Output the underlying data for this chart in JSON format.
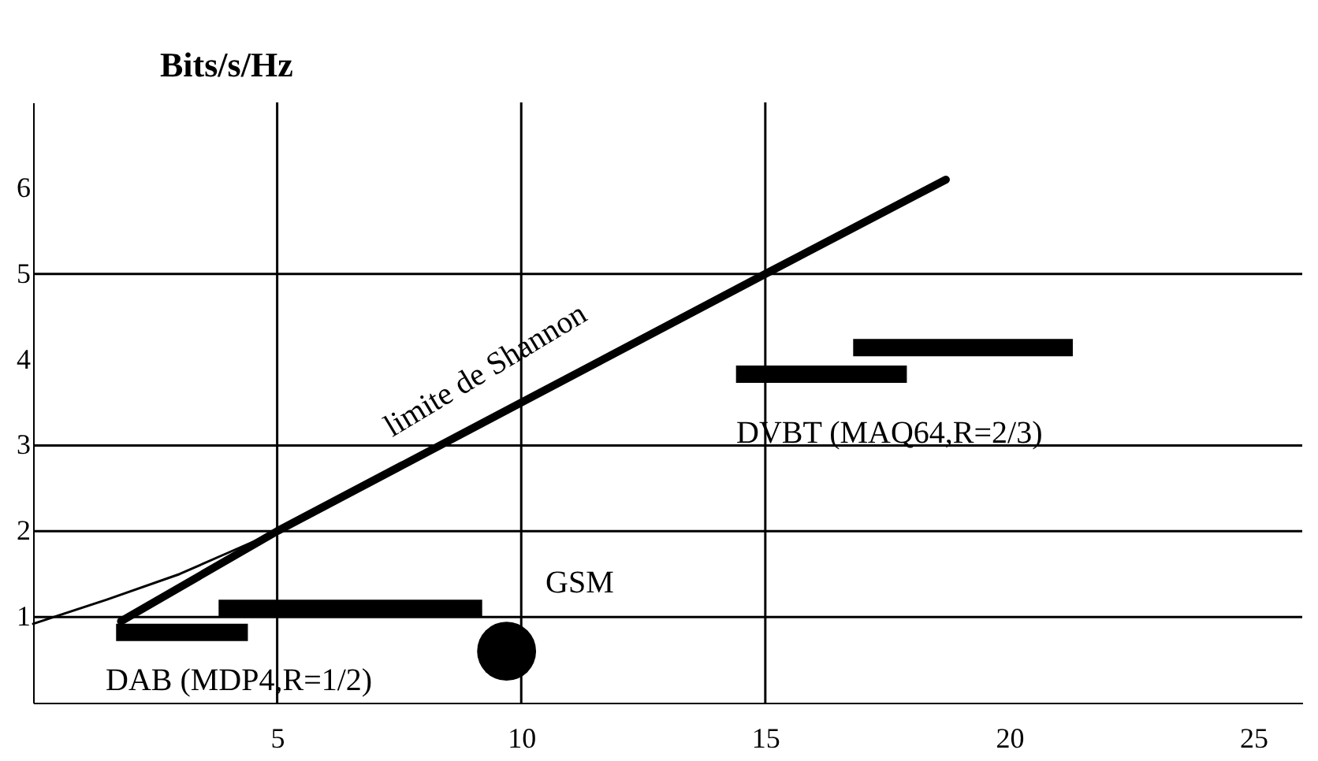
{
  "chart_data": {
    "type": "line",
    "ylabel": "Bits/s/Hz",
    "xlim": [
      0,
      26
    ],
    "ylim": [
      0,
      7
    ],
    "xticks": [
      5,
      10,
      15,
      20,
      25
    ],
    "yticks": [
      1,
      2,
      3,
      4,
      5,
      6
    ],
    "grid": false,
    "series": [
      {
        "color": "#000000",
        "x": [
          1.8,
          5,
          15,
          18.7
        ],
        "values": [
          0.95,
          2,
          5,
          6.1
        ]
      },
      {
        "color": "#000000",
        "x": [
          0,
          1.5,
          3,
          4,
          5
        ],
        "values": [
          0.92,
          1.2,
          1.5,
          1.75,
          2
        ]
      },
      {
        "color": "#000000",
        "x": [
          1.7,
          4.4
        ],
        "values": [
          0.82,
          0.82
        ]
      },
      {
        "color": "#000000",
        "x": [
          3.8,
          9.2
        ],
        "values": [
          1.1,
          1.1
        ]
      },
      {
        "color": "#000000",
        "x": [
          14.4,
          17.9
        ],
        "values": [
          3.83,
          3.83
        ]
      },
      {
        "color": "#000000",
        "x": [
          16.8,
          21.3
        ],
        "values": [
          4.14,
          4.14
        ]
      },
      {
        "type": "scatter",
        "color": "#000000",
        "x": [
          9.7
        ],
        "values": [
          0.6
        ]
      }
    ],
    "ref_lines": [
      {
        "axis": "x",
        "value": 5,
        "color": "#000000"
      },
      {
        "axis": "x",
        "value": 10,
        "color": "#000000"
      },
      {
        "axis": "x",
        "value": 15,
        "color": "#000000"
      },
      {
        "axis": "y",
        "value": 1,
        "color": "#000000"
      },
      {
        "axis": "y",
        "value": 2,
        "color": "#000000"
      },
      {
        "axis": "y",
        "value": 3,
        "color": "#000000"
      },
      {
        "axis": "y",
        "value": 5,
        "color": "#000000"
      }
    ],
    "annotations": [
      "DAB (MDP4,R=1/2)",
      "GSM",
      "DVBT (MAQ64,R=2/3)",
      "limite de Shannon"
    ]
  }
}
